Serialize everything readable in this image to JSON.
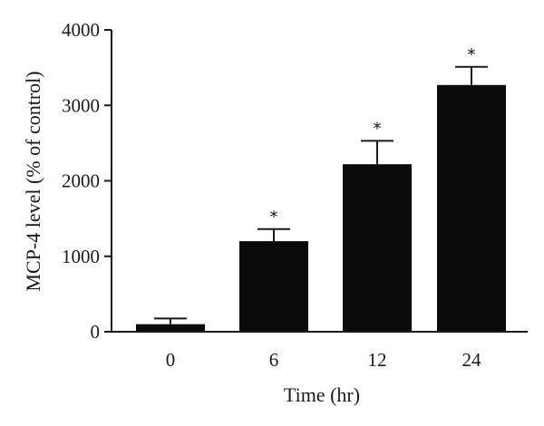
{
  "chart_data": {
    "type": "bar",
    "categories": [
      "0",
      "6",
      "12",
      "24"
    ],
    "values": [
      100,
      1200,
      2220,
      3270
    ],
    "error": [
      75,
      160,
      310,
      240
    ],
    "significance": [
      "",
      "*",
      "*",
      "*"
    ],
    "xlabel": "Time (hr)",
    "ylabel": "MCP-4 level (% of control)",
    "ylim": [
      0,
      4000
    ],
    "yticks": [
      0,
      1000,
      2000,
      3000,
      4000
    ],
    "grid": false,
    "bar_color": "#0a0a0a",
    "axis_color": "#1a1a1a"
  }
}
